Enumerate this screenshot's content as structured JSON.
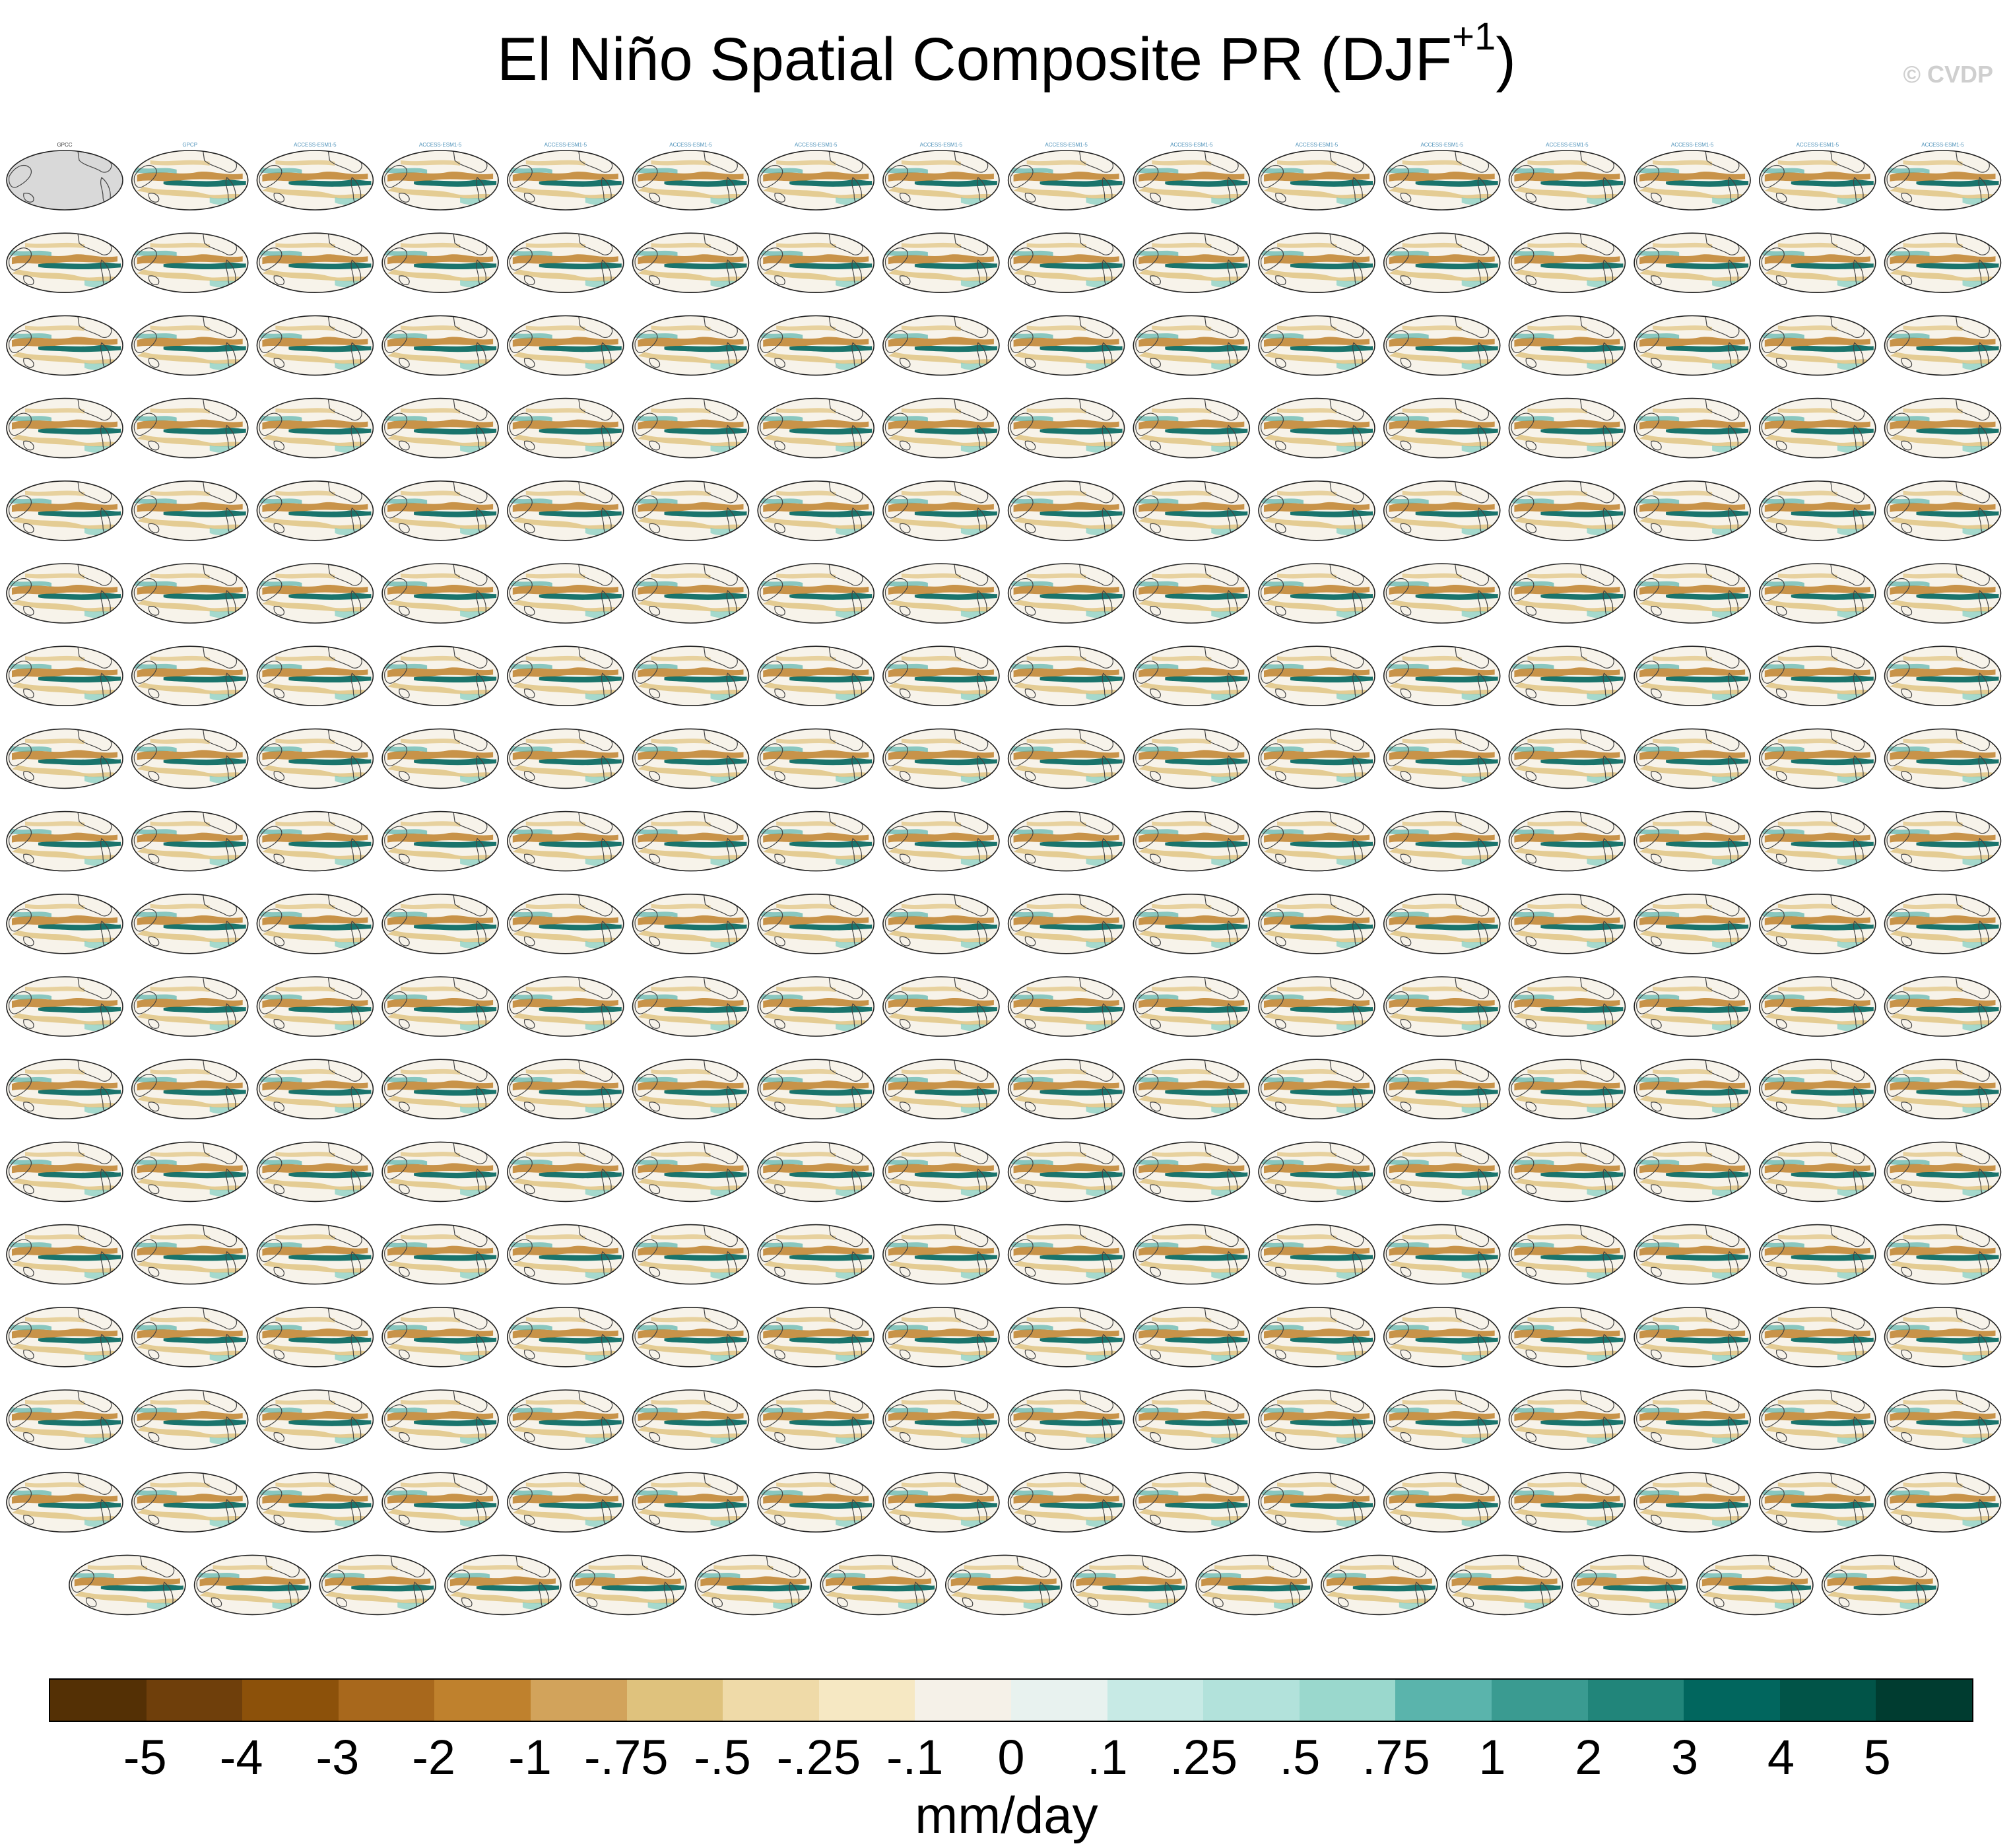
{
  "title": {
    "main": "El Niño Spatial Composite PR (DJF",
    "superscript": "+1",
    "close": ")"
  },
  "watermark": "© CVDP",
  "panels": {
    "rows": 17,
    "cols": 16,
    "last_row_count": 15,
    "first_labels": [
      "GPCC",
      "GPCP"
    ],
    "first_row_model_prefix": "ACCESS-ESM1-5"
  },
  "colorbar": {
    "colors": [
      "#543005",
      "#6f3f0b",
      "#8c510a",
      "#a8681c",
      "#bf812d",
      "#d2a35b",
      "#dfc27d",
      "#efdaa8",
      "#f6e8c3",
      "#f5f1e8",
      "#e8f2ef",
      "#c7eae5",
      "#b2e2db",
      "#9ad8cd",
      "#5ab4ac",
      "#3a9b91",
      "#21857a",
      "#01665e",
      "#015448",
      "#003c30"
    ],
    "ticks": [
      "-5",
      "-4",
      "-3",
      "-2",
      "-1",
      "-.75",
      "-.5",
      "-.25",
      "-.1",
      "0",
      ".1",
      ".25",
      ".5",
      ".75",
      "1",
      "2",
      "3",
      "4",
      "5"
    ],
    "units": "mm/day"
  }
}
